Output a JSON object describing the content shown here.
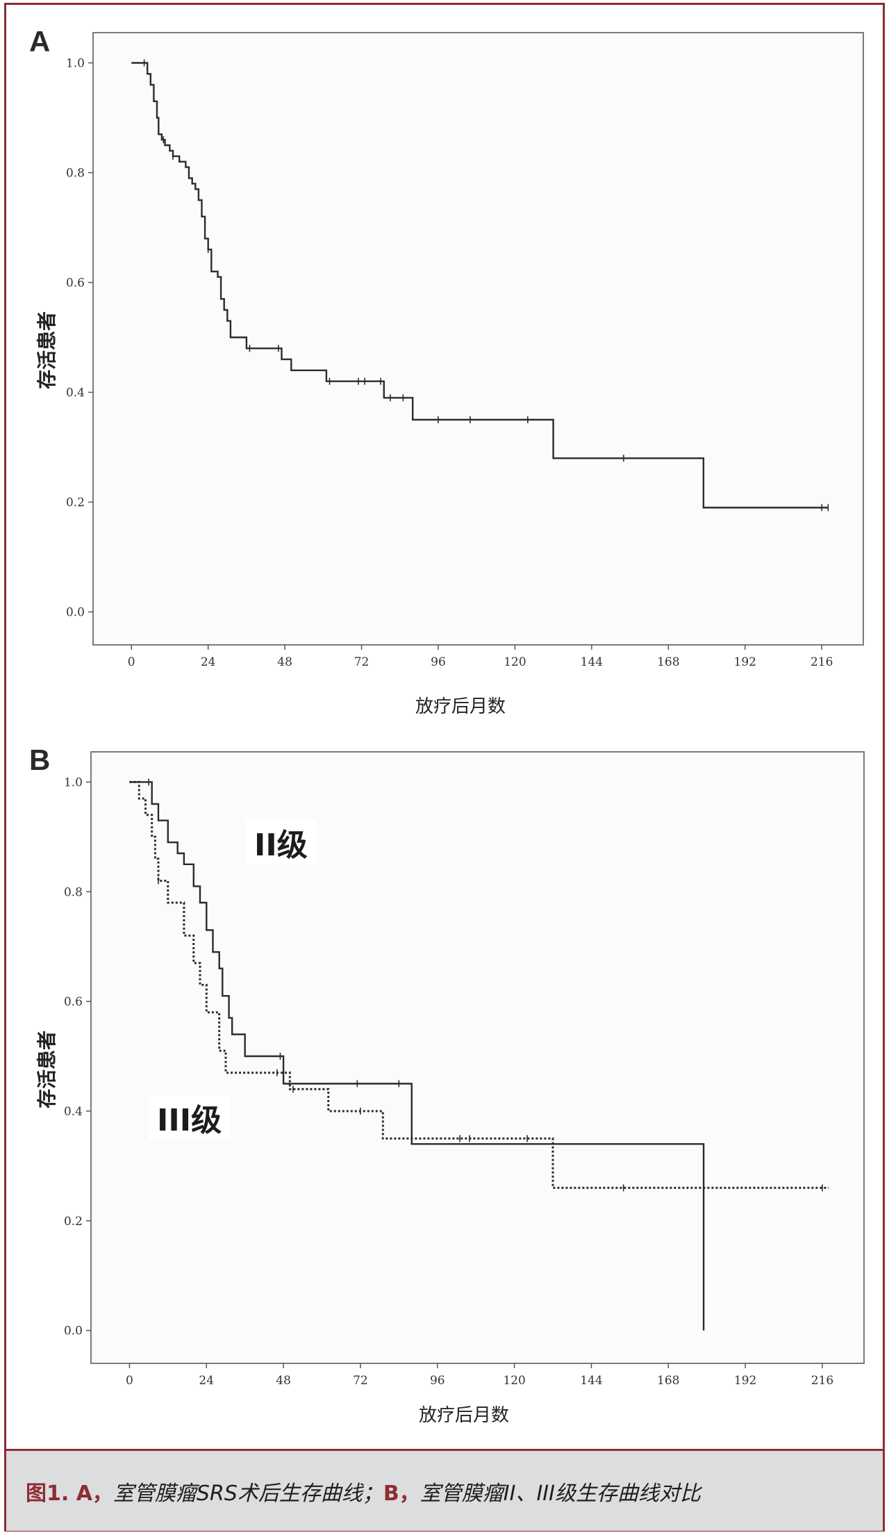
{
  "panels": {
    "a": {
      "letter": "A",
      "ylabel": "存活患者",
      "xlabel": "放疗后月数"
    },
    "b": {
      "letter": "B",
      "ylabel": "存活患者",
      "xlabel": "放疗后月数",
      "label_grade2": "II级",
      "label_grade3": "III级"
    }
  },
  "caption": {
    "tag_1": "图1. A，",
    "text_1": "室管膜瘤SRS术后生存曲线；",
    "tag_2": "B，",
    "text_2": "室管膜瘤II、III级生存曲线对比"
  },
  "colors": {
    "frame": "#8e2d32",
    "caption_bg": "#dcdddf",
    "curve": "#2b2b2b",
    "plot_bg": "#fbfbfb"
  },
  "chart_data": [
    {
      "type": "line",
      "subtype": "kaplan-meier",
      "xlabel": "放疗后月数",
      "ylabel": "存活患者",
      "xlim": [
        -12,
        229
      ],
      "ylim": [
        -0.06,
        1.055
      ],
      "x_ticks": [
        "0",
        "24",
        "48",
        "72",
        "96",
        "120",
        "144",
        "168",
        "192",
        "216"
      ],
      "y_ticks": [
        "0.0",
        "0.2",
        "0.4",
        "0.6",
        "0.8",
        "1.0"
      ],
      "series": [
        {
          "style": "solid",
          "points": [
            [
              0,
              1.0
            ],
            [
              4,
              1.0
            ],
            [
              5,
              0.98
            ],
            [
              6,
              0.96
            ],
            [
              7,
              0.93
            ],
            [
              8,
              0.9
            ],
            [
              8.5,
              0.87
            ],
            [
              9.5,
              0.86
            ],
            [
              10.5,
              0.85
            ],
            [
              12,
              0.84
            ],
            [
              13,
              0.83
            ],
            [
              15,
              0.82
            ],
            [
              17,
              0.81
            ],
            [
              18,
              0.79
            ],
            [
              19,
              0.78
            ],
            [
              20,
              0.77
            ],
            [
              21,
              0.75
            ],
            [
              22,
              0.72
            ],
            [
              23,
              0.68
            ],
            [
              24,
              0.66
            ],
            [
              25,
              0.62
            ],
            [
              27,
              0.61
            ],
            [
              28,
              0.57
            ],
            [
              29,
              0.55
            ],
            [
              30,
              0.53
            ],
            [
              31,
              0.5
            ],
            [
              36,
              0.48
            ],
            [
              47,
              0.46
            ],
            [
              50,
              0.44
            ],
            [
              61,
              0.42
            ],
            [
              72,
              0.42
            ],
            [
              79,
              0.39
            ],
            [
              88,
              0.35
            ],
            [
              132,
              0.28
            ],
            [
              179,
              0.19
            ],
            [
              218,
              0.19
            ]
          ],
          "censor_x": [
            4,
            10,
            13,
            24,
            37,
            46,
            62,
            71,
            73,
            78,
            81,
            85,
            96,
            106,
            124,
            154,
            216,
            218
          ]
        }
      ]
    },
    {
      "type": "line",
      "subtype": "kaplan-meier",
      "xlabel": "放疗后月数",
      "ylabel": "存活患者",
      "xlim": [
        -12,
        229
      ],
      "ylim": [
        -0.06,
        1.055
      ],
      "x_ticks": [
        "0",
        "24",
        "48",
        "72",
        "96",
        "120",
        "144",
        "168",
        "192",
        "216"
      ],
      "y_ticks": [
        "0.0",
        "0.2",
        "0.4",
        "0.6",
        "0.8",
        "1.0"
      ],
      "series": [
        {
          "name": "II级",
          "style": "solid",
          "points": [
            [
              0,
              1.0
            ],
            [
              6,
              1.0
            ],
            [
              7,
              0.96
            ],
            [
              9,
              0.93
            ],
            [
              12,
              0.89
            ],
            [
              15,
              0.87
            ],
            [
              17,
              0.85
            ],
            [
              20,
              0.81
            ],
            [
              22,
              0.78
            ],
            [
              24,
              0.73
            ],
            [
              26,
              0.69
            ],
            [
              28,
              0.66
            ],
            [
              29,
              0.61
            ],
            [
              31,
              0.57
            ],
            [
              32,
              0.54
            ],
            [
              36,
              0.5
            ],
            [
              48,
              0.45
            ],
            [
              88,
              0.34
            ],
            [
              179,
              0.0
            ]
          ],
          "censor_x": [
            6,
            47,
            71,
            84
          ]
        },
        {
          "name": "III级",
          "style": "dotted",
          "points": [
            [
              0,
              1.0
            ],
            [
              3,
              0.97
            ],
            [
              5,
              0.94
            ],
            [
              7,
              0.9
            ],
            [
              8,
              0.86
            ],
            [
              9,
              0.82
            ],
            [
              12,
              0.78
            ],
            [
              17,
              0.72
            ],
            [
              20,
              0.67
            ],
            [
              22,
              0.63
            ],
            [
              24,
              0.58
            ],
            [
              28,
              0.51
            ],
            [
              30,
              0.47
            ],
            [
              50,
              0.44
            ],
            [
              62,
              0.4
            ],
            [
              79,
              0.35
            ],
            [
              132,
              0.26
            ],
            [
              218,
              0.26
            ]
          ],
          "censor_x": [
            9,
            46,
            51,
            72,
            88,
            103,
            106,
            124,
            154,
            216
          ]
        }
      ]
    }
  ]
}
